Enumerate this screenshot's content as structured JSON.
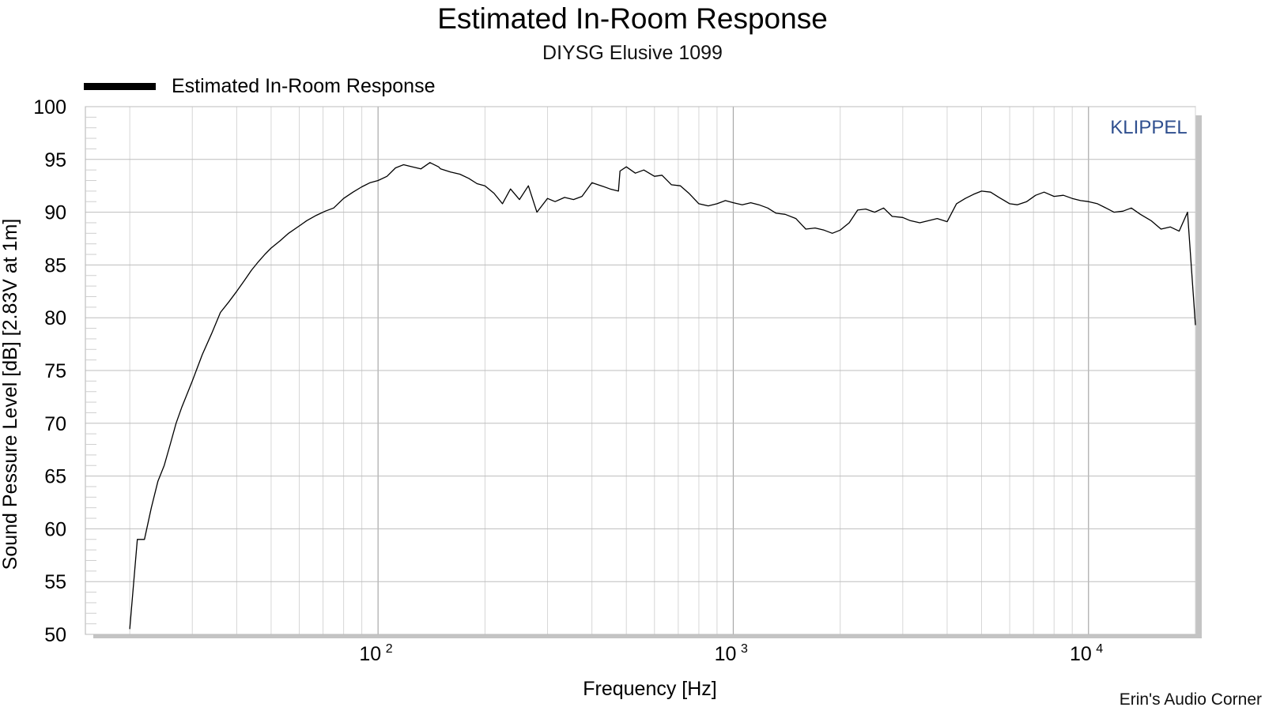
{
  "chart_data": {
    "type": "line",
    "title": "Estimated In-Room Response",
    "subtitle": "DIYSG Elusive 1099",
    "xlabel": "Frequency [Hz]",
    "ylabel": "Sound Pessure Level [dB]   [2.83V at 1m]",
    "xscale": "log",
    "xlim": [
      15,
      20000
    ],
    "ylim": [
      50,
      100
    ],
    "grid": true,
    "legend_position": "top-left",
    "yticks": [
      "50",
      "55",
      "60",
      "65",
      "70",
      "75",
      "80",
      "85",
      "90",
      "95",
      "100"
    ],
    "xticks": [
      {
        "value": 100,
        "base": "10",
        "exp": "2"
      },
      {
        "value": 1000,
        "base": "10",
        "exp": "3"
      },
      {
        "value": 10000,
        "base": "10",
        "exp": "4"
      }
    ],
    "annotation": "KLIPPEL",
    "series": [
      {
        "name": "Estimated In-Room Response",
        "color": "#000000",
        "x": [
          20,
          21,
          22,
          23,
          24,
          25,
          26,
          27,
          28,
          30,
          32,
          34,
          36,
          38,
          40,
          42,
          44,
          46,
          48,
          50,
          53,
          56,
          60,
          63,
          67,
          71,
          75,
          80,
          85,
          90,
          95,
          100,
          106,
          112,
          118,
          125,
          132,
          140,
          148,
          150,
          160,
          170,
          180,
          190,
          200,
          212,
          224,
          236,
          250,
          265,
          280,
          300,
          315,
          335,
          355,
          375,
          400,
          425,
          450,
          475,
          480,
          500,
          530,
          560,
          600,
          630,
          670,
          710,
          750,
          800,
          850,
          900,
          950,
          1000,
          1060,
          1120,
          1180,
          1250,
          1320,
          1400,
          1500,
          1600,
          1700,
          1800,
          1900,
          2000,
          2120,
          2240,
          2360,
          2500,
          2650,
          2800,
          3000,
          3150,
          3350,
          3550,
          3750,
          4000,
          4250,
          4500,
          4750,
          5000,
          5300,
          5600,
          6000,
          6300,
          6700,
          7100,
          7500,
          8000,
          8500,
          9000,
          9500,
          10000,
          10600,
          11200,
          11800,
          12500,
          13200,
          14000,
          15000,
          16000,
          17000,
          18000,
          19000,
          20000
        ],
        "y": [
          50.5,
          59.0,
          59.0,
          62.0,
          64.5,
          66.0,
          68.0,
          70.0,
          71.5,
          74.0,
          76.5,
          78.5,
          80.5,
          81.5,
          82.5,
          83.5,
          84.5,
          85.3,
          86.0,
          86.6,
          87.3,
          88.0,
          88.7,
          89.2,
          89.7,
          90.1,
          90.4,
          91.3,
          91.9,
          92.4,
          92.8,
          93.0,
          93.4,
          94.2,
          94.5,
          94.3,
          94.1,
          94.7,
          94.3,
          94.1,
          93.8,
          93.6,
          93.2,
          92.7,
          92.5,
          91.8,
          90.8,
          92.2,
          91.2,
          92.5,
          90.0,
          91.3,
          91.0,
          91.4,
          91.2,
          91.5,
          92.8,
          92.5,
          92.2,
          92.0,
          93.9,
          94.3,
          93.7,
          94.0,
          93.4,
          93.5,
          92.6,
          92.5,
          91.8,
          90.8,
          90.6,
          90.8,
          91.1,
          90.9,
          90.7,
          90.9,
          90.7,
          90.4,
          89.9,
          89.8,
          89.4,
          88.4,
          88.5,
          88.3,
          88.0,
          88.3,
          89.0,
          90.2,
          90.3,
          90.0,
          90.4,
          89.6,
          89.5,
          89.2,
          89.0,
          89.2,
          89.4,
          89.1,
          90.8,
          91.3,
          91.7,
          92.0,
          91.9,
          91.4,
          90.8,
          90.7,
          91.0,
          91.6,
          91.9,
          91.5,
          91.6,
          91.3,
          91.1,
          91.0,
          90.8,
          90.4,
          90.0,
          90.1,
          90.4,
          89.8,
          89.2,
          88.4,
          88.6,
          88.2,
          90.0,
          79.3
        ]
      }
    ]
  },
  "credit": "Erin's Audio Corner"
}
